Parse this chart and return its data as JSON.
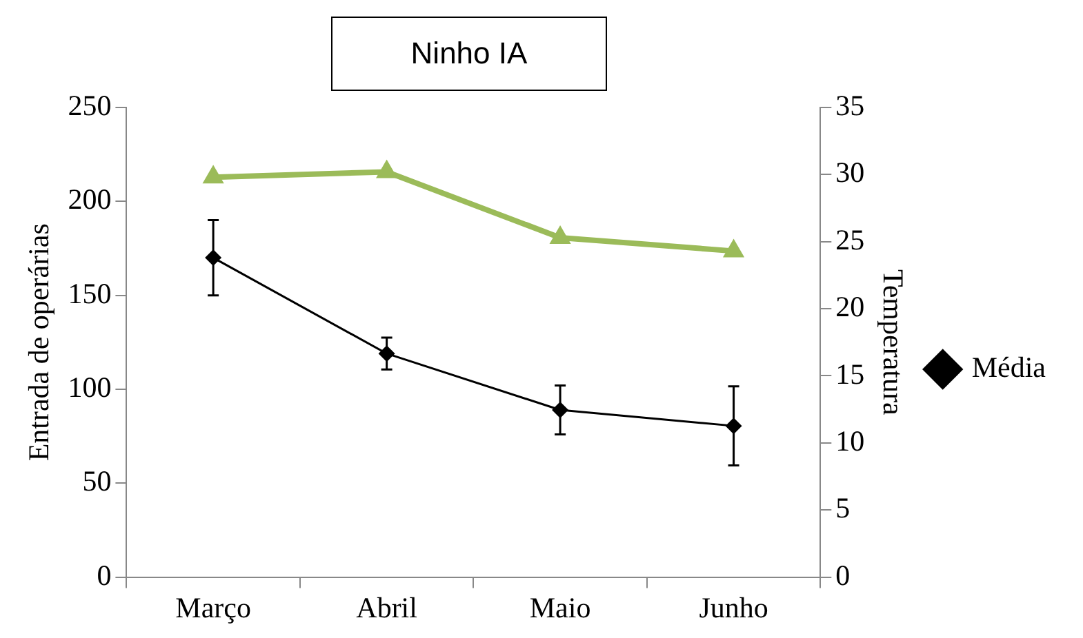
{
  "chart_data": {
    "type": "line",
    "title": "Ninho IA",
    "ylabel": "Entrada de operárias",
    "y2label": "Temperatura",
    "categories": [
      "Março",
      "Abril",
      "Maio",
      "Junho"
    ],
    "series": [
      {
        "name": "Média",
        "color": "#000000",
        "values": [
          170,
          119,
          89,
          80.5
        ],
        "errors": [
          20,
          8.5,
          13,
          21
        ],
        "marker": "diamond"
      },
      {
        "color": "#9bbb59",
        "values": [
          29.8,
          30.2,
          25.3,
          24.3
        ],
        "axis": "y2",
        "marker": "triangle"
      }
    ],
    "ylim": [
      0,
      250
    ],
    "yticks": [
      0,
      50,
      100,
      150,
      200,
      250
    ],
    "y2lim": [
      0,
      35
    ],
    "y2ticks": [
      0,
      5,
      10,
      15,
      20,
      25,
      30,
      35
    ],
    "grid": false,
    "legend": "right",
    "line_style": "solid"
  }
}
